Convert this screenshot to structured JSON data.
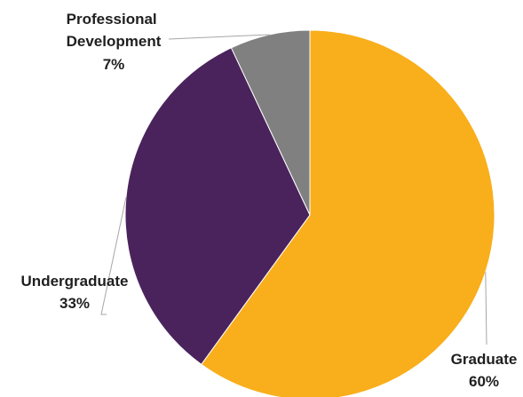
{
  "chart_data": {
    "type": "pie",
    "title": "",
    "slices": [
      {
        "label": "Graduate",
        "value": 60,
        "value_label": "60%",
        "color": "#F9AE1B"
      },
      {
        "label": "Undergraduate",
        "value": 33,
        "value_label": "33%",
        "color": "#4A235C"
      },
      {
        "label": "Professional Development",
        "label_lines": [
          "Professional",
          "Development"
        ],
        "value": 7,
        "value_label": "7%",
        "color": "#808080"
      }
    ],
    "start": "12 o'clock",
    "direction": "clockwise",
    "legend": "none",
    "data_labels": "outside with leader lines"
  }
}
